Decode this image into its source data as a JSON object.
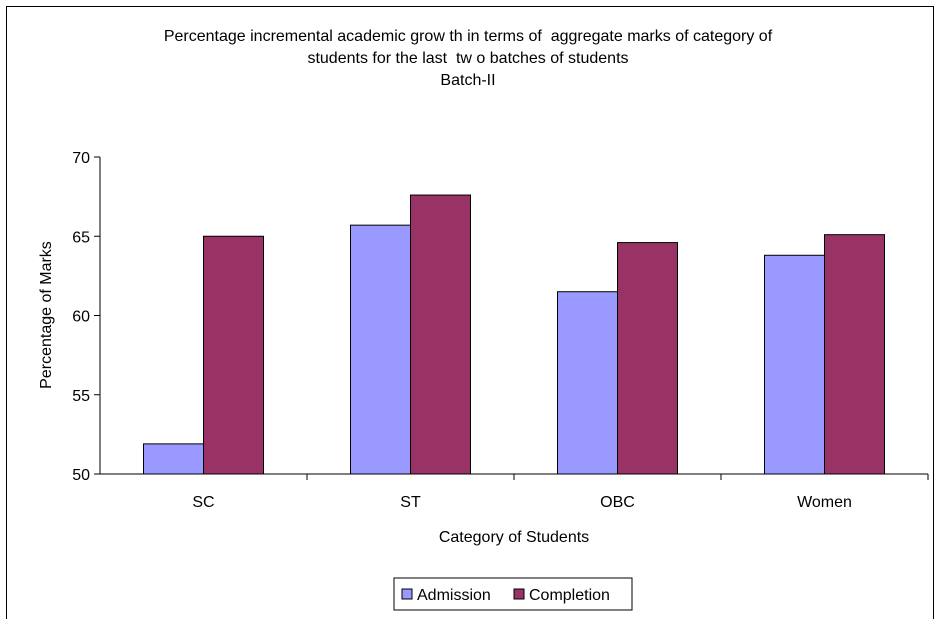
{
  "chart_data": {
    "type": "bar",
    "title": "Percentage incremental academic grow th in terms of  aggregate marks of category of",
    "title_line2": "students for the last  tw o batches of students",
    "subtitle": "Batch-II",
    "xlabel": "Category of Students",
    "ylabel": "Percentage of Marks",
    "ylim": [
      50,
      70
    ],
    "yticks": [
      "50",
      "55",
      "60",
      "65",
      "70"
    ],
    "categories": [
      "SC",
      "ST",
      "OBC",
      "Women"
    ],
    "series": [
      {
        "name": "Admission",
        "color": "#9999ff",
        "values": [
          51.9,
          65.7,
          61.5,
          63.8
        ]
      },
      {
        "name": "Completion",
        "color": "#993366",
        "values": [
          65.0,
          67.6,
          64.6,
          65.1
        ]
      }
    ],
    "grid": false,
    "legend_position": "bottom"
  }
}
